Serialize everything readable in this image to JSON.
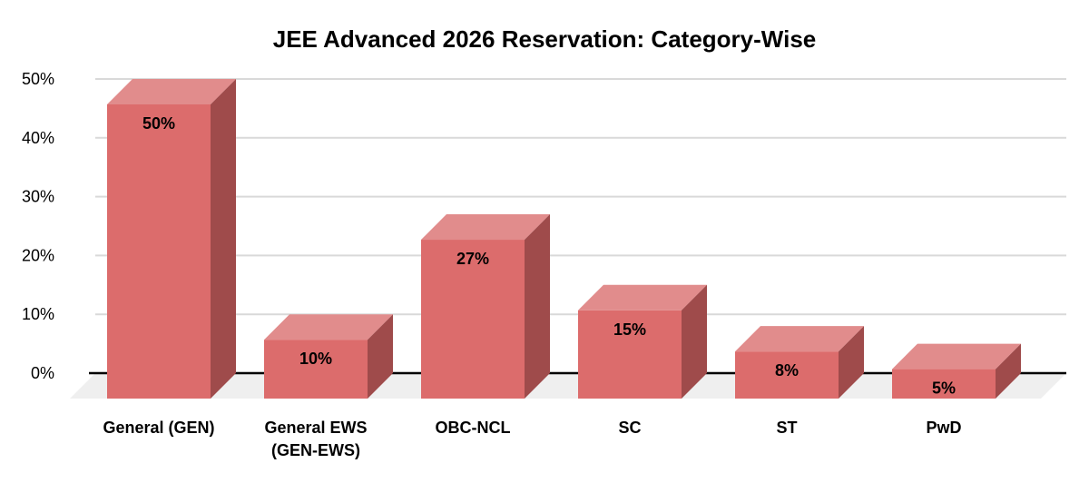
{
  "chart_data": {
    "type": "bar",
    "variant": "3d-column",
    "title": "JEE Advanced 2026 Reservation: Category-Wise",
    "categories": [
      "General (GEN)",
      "General EWS\n(GEN-EWS)",
      "OBC-NCL",
      "SC",
      "ST",
      "PwD"
    ],
    "values": [
      50,
      10,
      27,
      15,
      8,
      5
    ],
    "value_labels": [
      "50%",
      "10%",
      "27%",
      "15%",
      "8%",
      "5%"
    ],
    "unit": "%",
    "xlabel": "",
    "ylabel": "",
    "ylim": [
      0,
      50
    ],
    "ytick_values": [
      0,
      10,
      20,
      30,
      40,
      50
    ],
    "ytick_labels": [
      "0%",
      "10%",
      "20%",
      "30%",
      "40%",
      "50%"
    ],
    "grid": true,
    "legend": "none",
    "colors": {
      "bar_front": "#DC6C6C",
      "bar_top": "#E18C8C",
      "bar_side": "#9F4B4B",
      "floor": "#EFEFEF",
      "gridline": "#D9D9D9",
      "baseline": "#000000",
      "text": "#000000",
      "background": "#FFFFFF"
    }
  }
}
